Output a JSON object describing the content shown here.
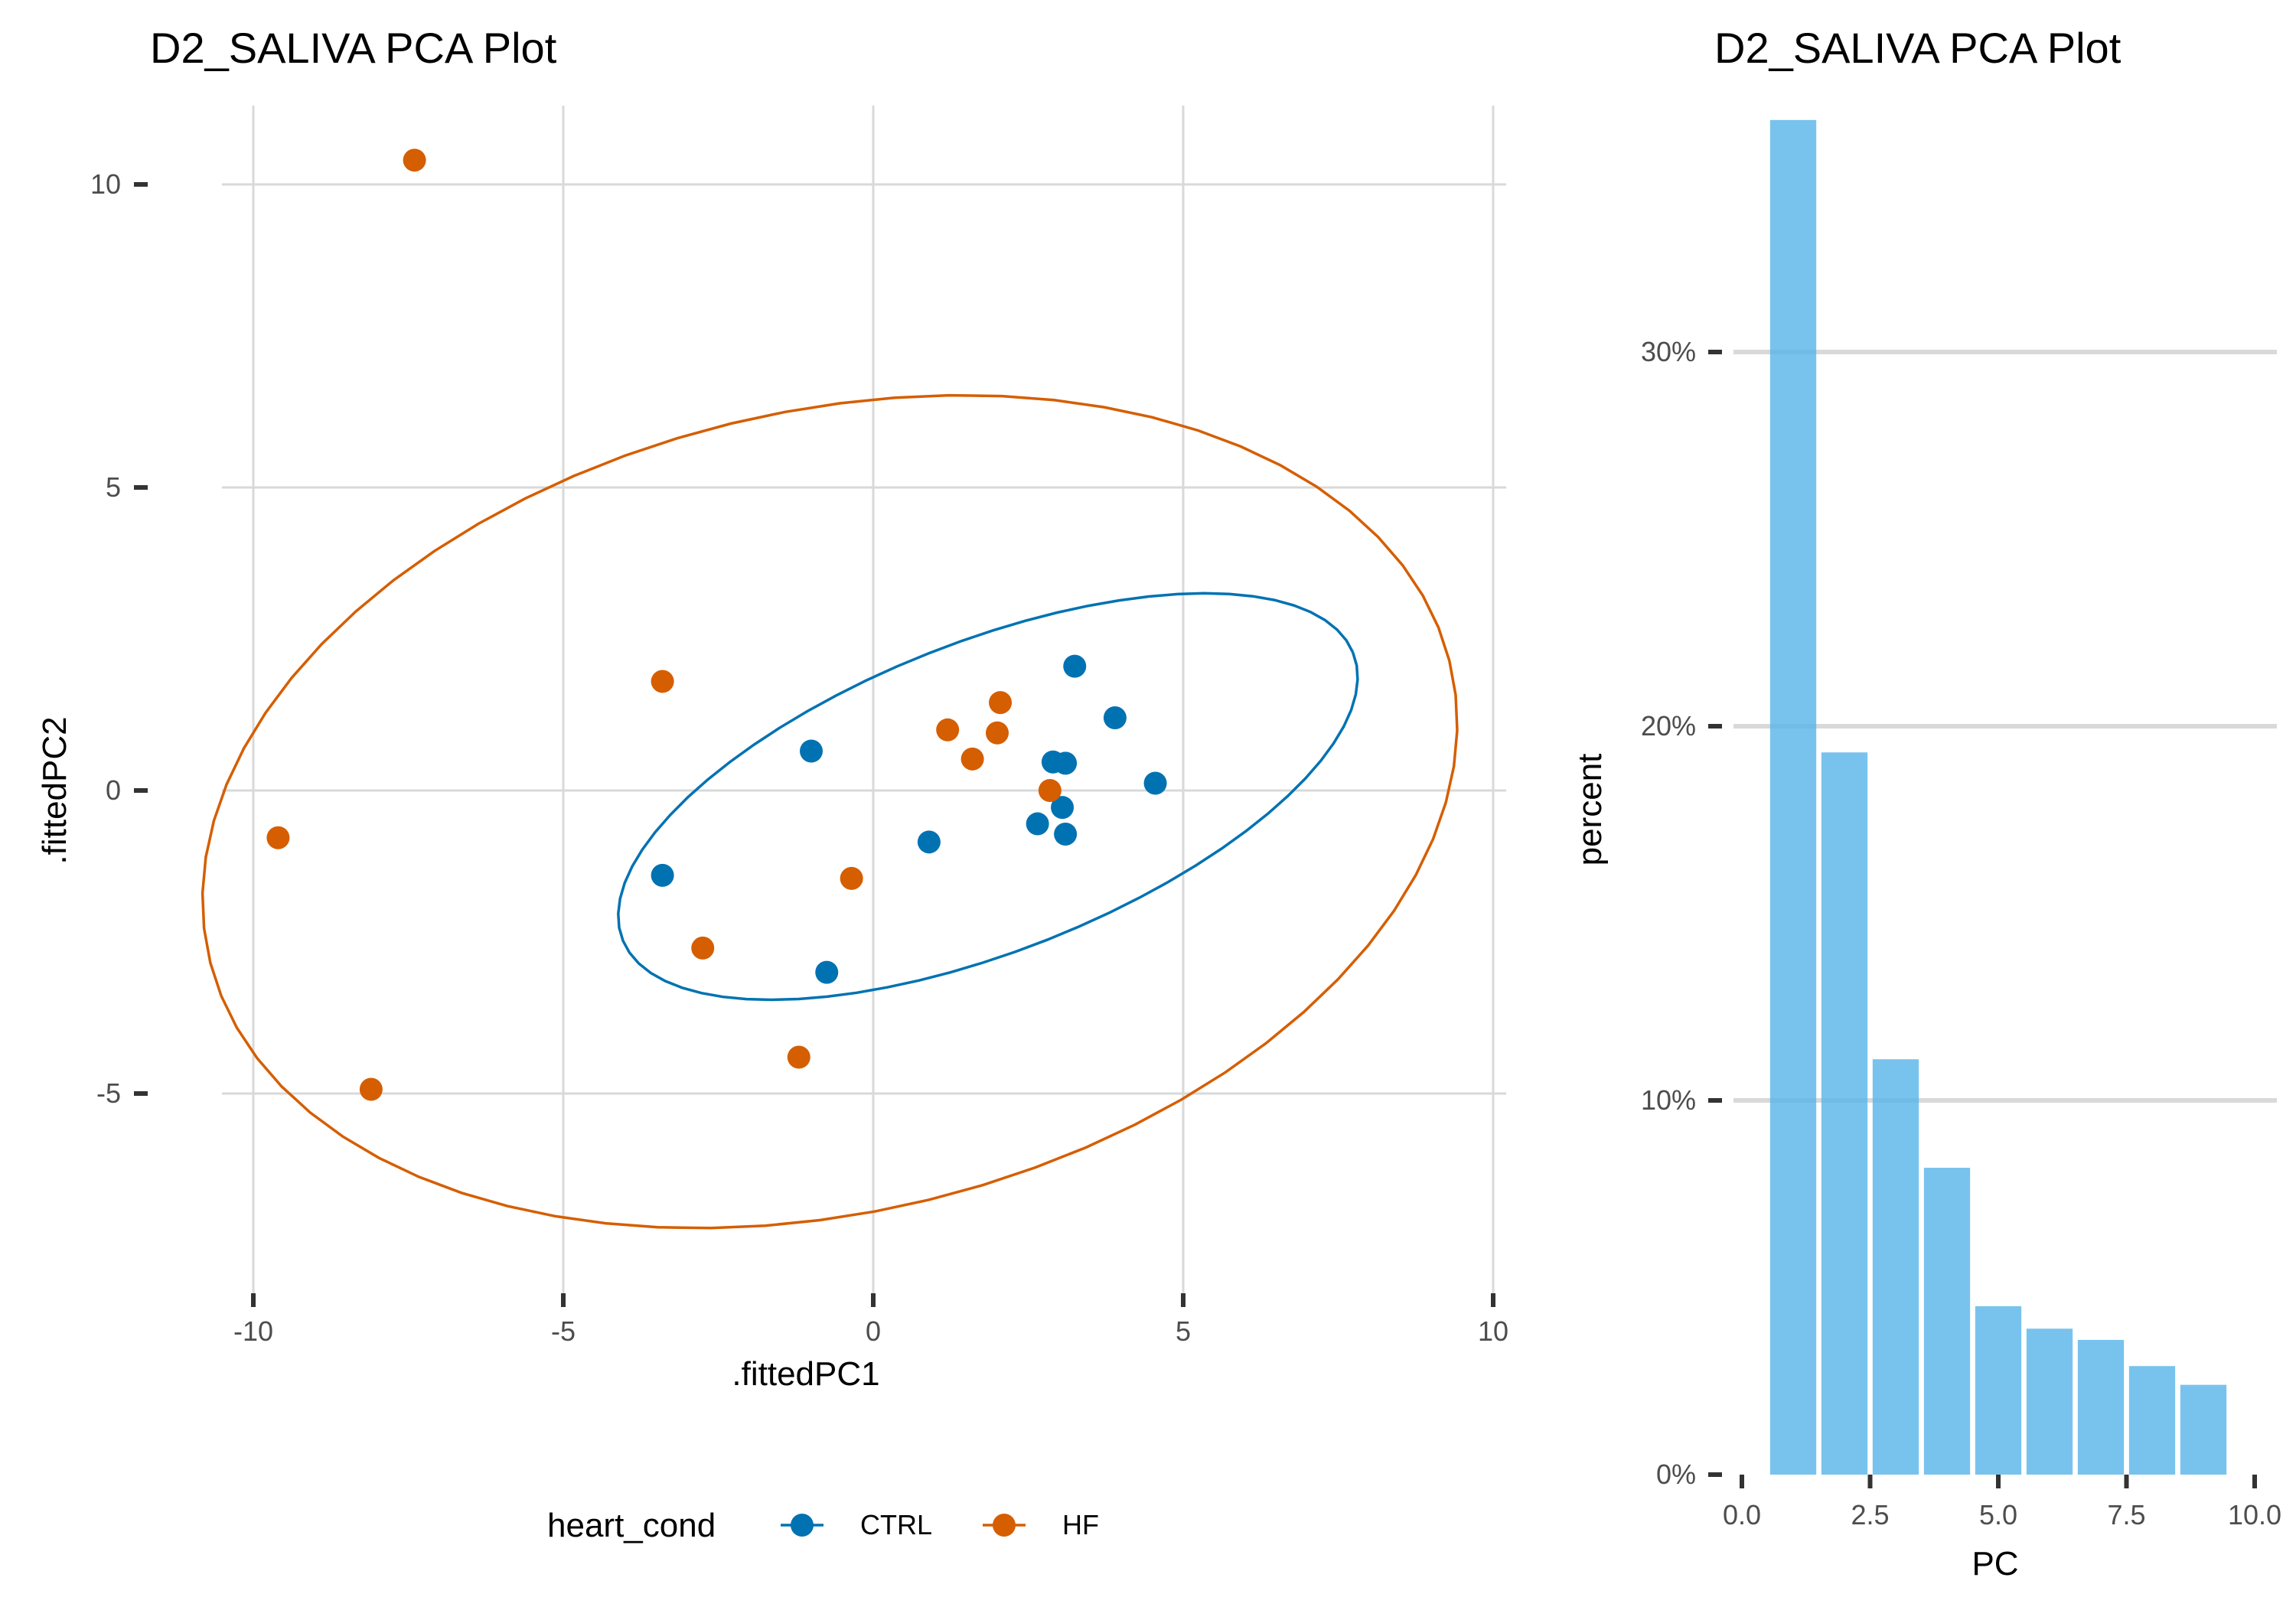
{
  "chart_data": [
    {
      "type": "scatter",
      "title": "D2_SALIVA PCA Plot",
      "xlabel": ".fittedPC1",
      "ylabel": ".fittedPC2",
      "xlim": [
        -10.5,
        10.2
      ],
      "ylim": [
        -8.5,
        11.3
      ],
      "x_ticks": [
        -10,
        -5,
        0,
        5,
        10
      ],
      "y_ticks": [
        -5,
        0,
        5,
        10
      ],
      "x_tick_labels": [
        "-10",
        "-5",
        "0",
        "5",
        "10"
      ],
      "y_tick_labels": [
        "-5",
        "0",
        "5",
        "10"
      ],
      "grid": true,
      "legend": {
        "title": "heart_cond",
        "position": "bottom"
      },
      "series": [
        {
          "name": "CTRL",
          "color": "#0072B2",
          "points": [
            [
              3.25,
              2.05
            ],
            [
              3.9,
              1.2
            ],
            [
              4.55,
              0.12
            ],
            [
              -1.0,
              0.65
            ],
            [
              2.9,
              0.47
            ],
            [
              3.1,
              0.45
            ],
            [
              3.05,
              -0.28
            ],
            [
              2.65,
              -0.55
            ],
            [
              3.1,
              -0.72
            ],
            [
              0.9,
              -0.85
            ],
            [
              -3.4,
              -1.4
            ],
            [
              -0.75,
              -3.0
            ]
          ],
          "ellipse": {
            "center": [
              1.85,
              -0.1
            ],
            "a": 6.35,
            "b": 2.55,
            "angle_deg": 22
          }
        },
        {
          "name": "HF",
          "color": "#D55E00",
          "points": [
            [
              -7.4,
              10.4
            ],
            [
              -3.4,
              1.8
            ],
            [
              2.05,
              1.45
            ],
            [
              1.2,
              1.0
            ],
            [
              2.0,
              0.95
            ],
            [
              1.6,
              0.52
            ],
            [
              2.85,
              0.0
            ],
            [
              -9.6,
              -0.78
            ],
            [
              -0.35,
              -1.45
            ],
            [
              -2.75,
              -2.6
            ],
            [
              -1.2,
              -4.4
            ],
            [
              -8.1,
              -4.93
            ]
          ],
          "ellipse": {
            "center": [
              -0.7,
              -0.35
            ],
            "a": 10.3,
            "b": 6.6,
            "angle_deg": 14
          }
        }
      ]
    },
    {
      "type": "bar",
      "title": "D2_SALIVA PCA Plot",
      "xlabel": "PC",
      "ylabel": "percent",
      "x": [
        1,
        2,
        3,
        4,
        5,
        6,
        7,
        8,
        9
      ],
      "values": [
        36.2,
        19.3,
        11.1,
        8.2,
        4.5,
        3.9,
        3.6,
        2.9,
        2.4
      ],
      "xlim": [
        -0.4,
        10.6
      ],
      "ylim": [
        0,
        36.5
      ],
      "x_ticks": [
        0,
        2.5,
        5,
        7.5,
        10
      ],
      "x_tick_labels": [
        "0.0",
        "2.5",
        "5.0",
        "7.5",
        "10.0"
      ],
      "y_ticks": [
        0,
        10,
        20,
        30
      ],
      "y_tick_labels": [
        "0%",
        "10%",
        "20%",
        "30%"
      ],
      "bar_color": "#56B4E9",
      "grid": "horizontal"
    }
  ]
}
